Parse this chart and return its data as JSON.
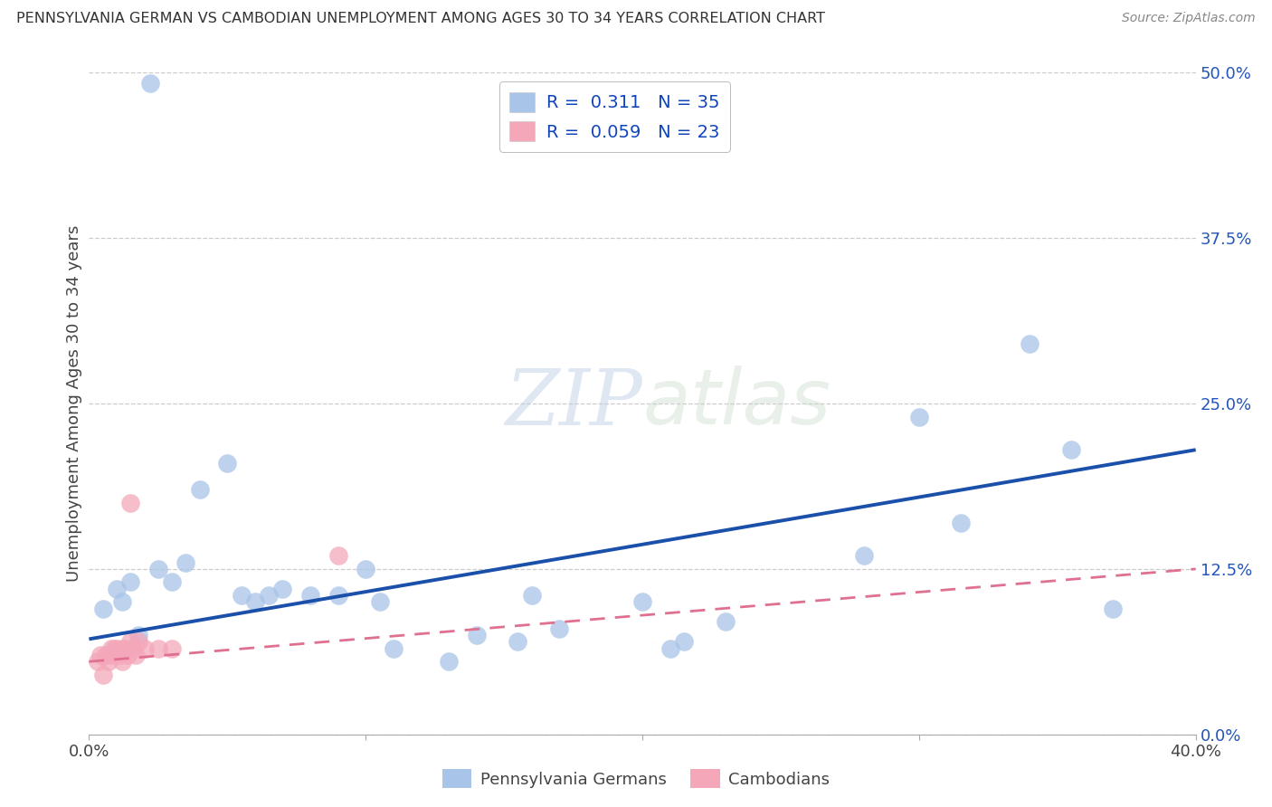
{
  "title": "PENNSYLVANIA GERMAN VS CAMBODIAN UNEMPLOYMENT AMONG AGES 30 TO 34 YEARS CORRELATION CHART",
  "source": "Source: ZipAtlas.com",
  "ylabel": "Unemployment Among Ages 30 to 34 years",
  "xlim": [
    0.0,
    0.4
  ],
  "ylim": [
    0.0,
    0.5
  ],
  "yticks_right": [
    0.0,
    0.125,
    0.25,
    0.375,
    0.5
  ],
  "ytick_labels_right": [
    "0.0%",
    "12.5%",
    "25.0%",
    "37.5%",
    "50.0%"
  ],
  "xtick_positions": [
    0.0,
    0.1,
    0.2,
    0.3,
    0.4
  ],
  "xtick_labels": [
    "0.0%",
    "",
    "",
    "",
    "40.0%"
  ],
  "blue_color": "#A8C4E8",
  "pink_color": "#F4A7B9",
  "line_blue": "#1A4FAA",
  "line_pink": "#E07090",
  "R_blue": 0.311,
  "N_blue": 35,
  "R_pink": 0.059,
  "N_pink": 23,
  "watermark_zip": "ZIP",
  "watermark_atlas": "atlas",
  "legend_labels": [
    "Pennsylvania Germans",
    "Cambodians"
  ],
  "blue_scatter_x": [
    0.022,
    0.05,
    0.04,
    0.005,
    0.01,
    0.015,
    0.018,
    0.012,
    0.025,
    0.03,
    0.035,
    0.055,
    0.065,
    0.06,
    0.07,
    0.08,
    0.09,
    0.1,
    0.105,
    0.11,
    0.13,
    0.14,
    0.155,
    0.16,
    0.17,
    0.2,
    0.21,
    0.215,
    0.23,
    0.28,
    0.3,
    0.315,
    0.34,
    0.355,
    0.37
  ],
  "blue_scatter_y": [
    0.492,
    0.205,
    0.185,
    0.095,
    0.11,
    0.115,
    0.075,
    0.1,
    0.125,
    0.115,
    0.13,
    0.105,
    0.105,
    0.1,
    0.11,
    0.105,
    0.105,
    0.125,
    0.1,
    0.065,
    0.055,
    0.075,
    0.07,
    0.105,
    0.08,
    0.1,
    0.065,
    0.07,
    0.085,
    0.135,
    0.24,
    0.16,
    0.295,
    0.215,
    0.095
  ],
  "pink_scatter_x": [
    0.003,
    0.004,
    0.005,
    0.006,
    0.007,
    0.008,
    0.008,
    0.009,
    0.01,
    0.011,
    0.012,
    0.012,
    0.013,
    0.014,
    0.015,
    0.015,
    0.016,
    0.017,
    0.018,
    0.02,
    0.025,
    0.03,
    0.09
  ],
  "pink_scatter_y": [
    0.055,
    0.06,
    0.045,
    0.06,
    0.055,
    0.06,
    0.065,
    0.065,
    0.065,
    0.06,
    0.065,
    0.055,
    0.065,
    0.06,
    0.175,
    0.07,
    0.065,
    0.06,
    0.07,
    0.065,
    0.065,
    0.065,
    0.135
  ],
  "blue_line_x0": 0.0,
  "blue_line_x1": 0.4,
  "blue_line_y0": 0.072,
  "blue_line_y1": 0.215,
  "pink_line_x0": 0.0,
  "pink_line_x1": 0.4,
  "pink_line_y0": 0.055,
  "pink_line_y1": 0.125
}
